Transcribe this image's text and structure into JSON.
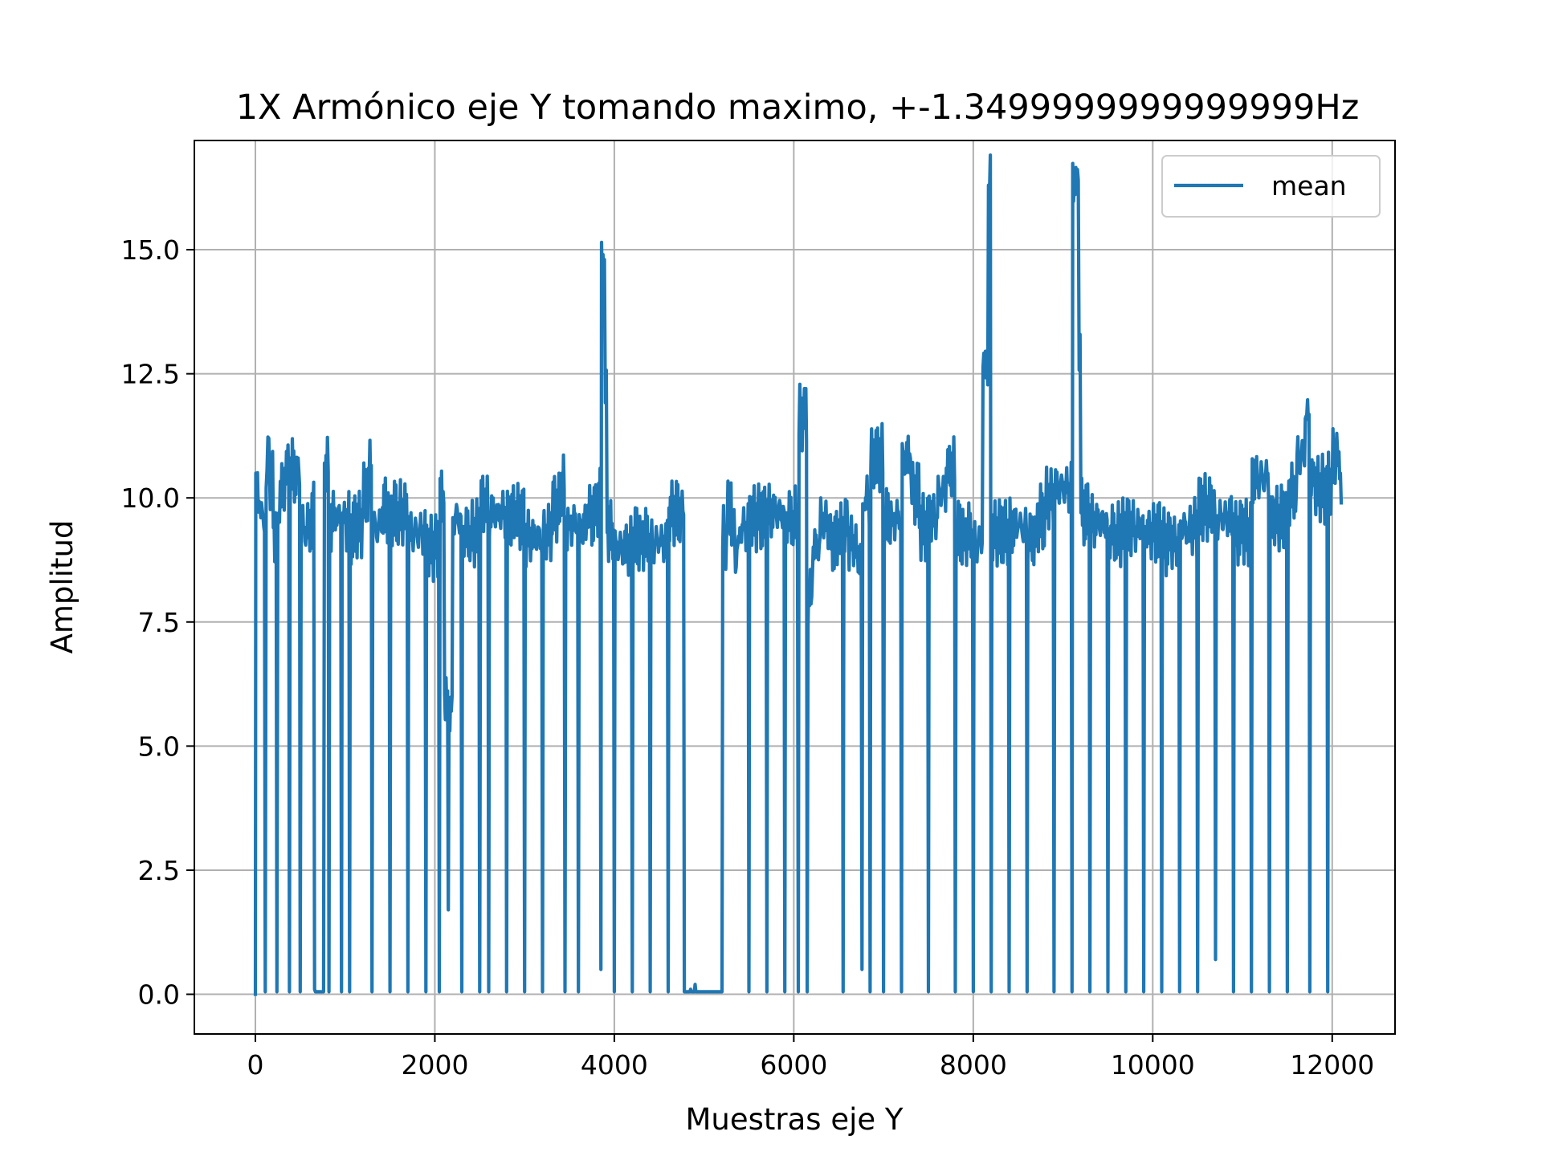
{
  "chart_data": {
    "type": "line",
    "title": "1X Armónico eje Y tomando maximo, +-1.3499999999999999Hz",
    "xlabel": "Muestras eje Y",
    "ylabel": "Amplitud",
    "xlim": [
      -680,
      12700
    ],
    "ylim": [
      -0.8,
      17.2
    ],
    "xticks": [
      0,
      2000,
      4000,
      6000,
      8000,
      10000,
      12000
    ],
    "xtick_labels": [
      "0",
      "2000",
      "4000",
      "6000",
      "8000",
      "10000",
      "12000"
    ],
    "yticks": [
      0.0,
      2.5,
      5.0,
      7.5,
      10.0,
      12.5,
      15.0
    ],
    "ytick_labels": [
      "0.0",
      "2.5",
      "5.0",
      "7.5",
      "10.0",
      "12.5",
      "15.0"
    ],
    "grid": true,
    "legend_position": "top-right",
    "series": [
      {
        "name": "mean",
        "color": "#1f77b4",
        "x_range": [
          0,
          12100
        ],
        "description_points": [
          [
            0,
            0.0
          ],
          [
            5,
            10.5
          ],
          [
            60,
            9.6
          ],
          [
            110,
            0.05
          ],
          [
            120,
            10.2
          ],
          [
            150,
            11.2
          ],
          [
            200,
            9.4
          ],
          [
            240,
            0.05
          ],
          [
            260,
            9.7
          ],
          [
            330,
            10.6
          ],
          [
            380,
            0.05
          ],
          [
            420,
            10.5
          ],
          [
            500,
            0.05
          ],
          [
            520,
            9.3
          ],
          [
            600,
            9.4
          ],
          [
            640,
            9.7
          ],
          [
            660,
            0.1
          ],
          [
            760,
            0.05
          ],
          [
            770,
            10.7
          ],
          [
            820,
            0.05
          ],
          [
            900,
            9.6
          ],
          [
            960,
            0.05
          ],
          [
            1000,
            9.5
          ],
          [
            1050,
            0.05
          ],
          [
            1100,
            9.3
          ],
          [
            1200,
            9.6
          ],
          [
            1260,
            10.6
          ],
          [
            1300,
            0.05
          ],
          [
            1400,
            9.4
          ],
          [
            1480,
            10.1
          ],
          [
            1500,
            0.05
          ],
          [
            1600,
            9.7
          ],
          [
            1700,
            0.05
          ],
          [
            1800,
            9.3
          ],
          [
            1900,
            0.05
          ],
          [
            2000,
            9.0
          ],
          [
            2050,
            0.05
          ],
          [
            2100,
            9.9
          ],
          [
            2150,
            1.7
          ],
          [
            2200,
            9.6
          ],
          [
            2300,
            0.05
          ],
          [
            2400,
            9.3
          ],
          [
            2500,
            0.05
          ],
          [
            2560,
            9.8
          ],
          [
            2600,
            0.05
          ],
          [
            2700,
            9.7
          ],
          [
            2800,
            0.05
          ],
          [
            2900,
            9.6
          ],
          [
            3000,
            0.05
          ],
          [
            3100,
            9.2
          ],
          [
            3200,
            0.05
          ],
          [
            3300,
            9.3
          ],
          [
            3400,
            10.3
          ],
          [
            3450,
            0.05
          ],
          [
            3500,
            9.5
          ],
          [
            3600,
            0.05
          ],
          [
            3700,
            9.4
          ],
          [
            3800,
            9.9
          ],
          [
            3850,
            0.5
          ],
          [
            3890,
            14.8
          ],
          [
            3920,
            9.3
          ],
          [
            4000,
            0.05
          ],
          [
            4100,
            9.0
          ],
          [
            4200,
            0.05
          ],
          [
            4300,
            9.2
          ],
          [
            4400,
            0.05
          ],
          [
            4500,
            9.1
          ],
          [
            4600,
            0.05
          ],
          [
            4700,
            9.7
          ],
          [
            4780,
            0.05
          ],
          [
            4850,
            0.1
          ],
          [
            4900,
            0.2
          ],
          [
            5000,
            0.05
          ],
          [
            5200,
            0.05
          ],
          [
            5250,
            9.2
          ],
          [
            5300,
            10.3
          ],
          [
            5350,
            8.5
          ],
          [
            5400,
            9.4
          ],
          [
            5500,
            0.05
          ],
          [
            5600,
            9.6
          ],
          [
            5700,
            0.05
          ],
          [
            5800,
            9.7
          ],
          [
            5900,
            0.05
          ],
          [
            6000,
            9.6
          ],
          [
            6050,
            0.05
          ],
          [
            6110,
            11.6
          ],
          [
            6150,
            0.05
          ],
          [
            6200,
            8.0
          ],
          [
            6300,
            10.0
          ],
          [
            6400,
            9.0
          ],
          [
            6500,
            9.2
          ],
          [
            6550,
            0.05
          ],
          [
            6600,
            9.4
          ],
          [
            6700,
            8.8
          ],
          [
            6760,
            0.5
          ],
          [
            6800,
            10.0
          ],
          [
            6850,
            0.05
          ],
          [
            6900,
            10.8
          ],
          [
            7000,
            0.05
          ],
          [
            7100,
            9.6
          ],
          [
            7200,
            0.05
          ],
          [
            7300,
            10.8
          ],
          [
            7400,
            9.4
          ],
          [
            7500,
            0.05
          ],
          [
            7600,
            9.6
          ],
          [
            7700,
            10.6
          ],
          [
            7800,
            0.05
          ],
          [
            7900,
            9.3
          ],
          [
            8000,
            0.05
          ],
          [
            8100,
            9.1
          ],
          [
            8170,
            16.3
          ],
          [
            8200,
            0.05
          ],
          [
            8300,
            9.3
          ],
          [
            8400,
            0.05
          ],
          [
            8500,
            9.4
          ],
          [
            8600,
            0.05
          ],
          [
            8700,
            9.2
          ],
          [
            8800,
            10.0
          ],
          [
            8900,
            0.05
          ],
          [
            9000,
            10.2
          ],
          [
            9100,
            0.05
          ],
          [
            9170,
            16.4
          ],
          [
            9200,
            9.7
          ],
          [
            9300,
            0.05
          ],
          [
            9400,
            9.5
          ],
          [
            9500,
            0.05
          ],
          [
            9600,
            9.3
          ],
          [
            9700,
            0.05
          ],
          [
            9800,
            9.4
          ],
          [
            9900,
            0.05
          ],
          [
            10000,
            9.3
          ],
          [
            10100,
            0.05
          ],
          [
            10200,
            9.1
          ],
          [
            10300,
            0.05
          ],
          [
            10400,
            9.4
          ],
          [
            10500,
            0.05
          ],
          [
            10600,
            9.8
          ],
          [
            10700,
            0.7
          ],
          [
            10800,
            9.6
          ],
          [
            10900,
            0.05
          ],
          [
            11000,
            9.3
          ],
          [
            11100,
            0.05
          ],
          [
            11200,
            10.4
          ],
          [
            11300,
            0.05
          ],
          [
            11400,
            9.6
          ],
          [
            11500,
            0.05
          ],
          [
            11600,
            10.1
          ],
          [
            11700,
            11.6
          ],
          [
            11750,
            0.05
          ],
          [
            11800,
            10.3
          ],
          [
            11900,
            10.1
          ],
          [
            11950,
            0.05
          ],
          [
            12000,
            10.3
          ],
          [
            12050,
            11.3
          ],
          [
            12100,
            9.9
          ]
        ]
      }
    ]
  }
}
